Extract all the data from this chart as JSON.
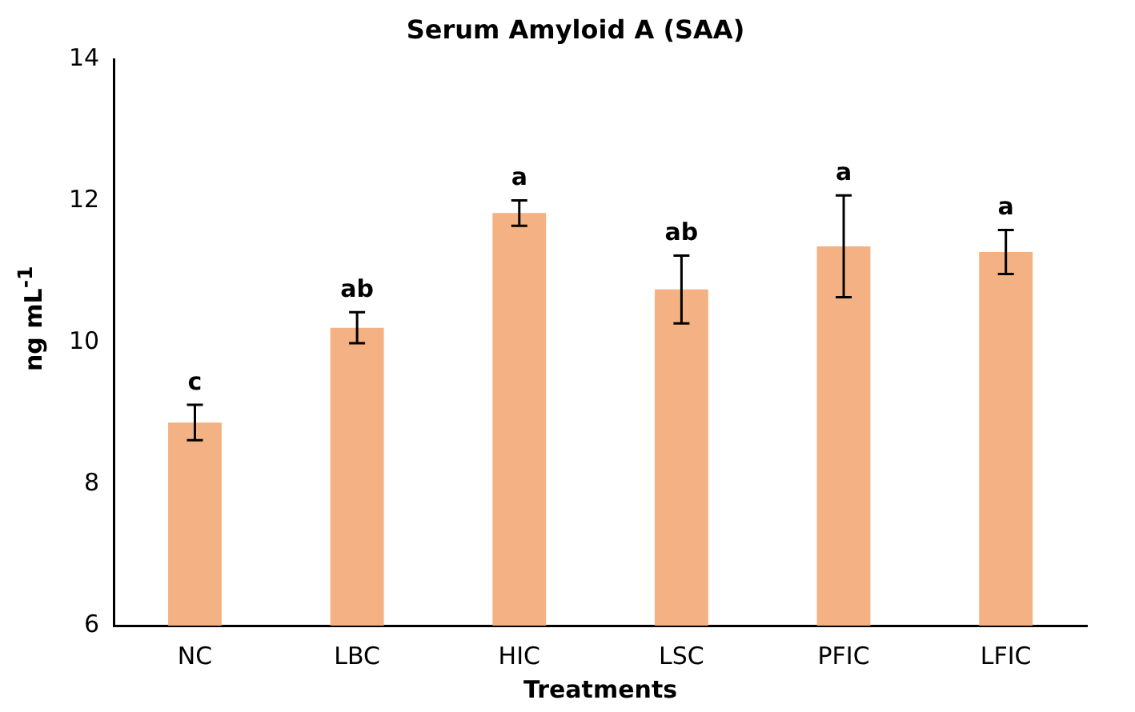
{
  "chart_data": {
    "type": "bar",
    "title": "Serum Amyloid A (SAA)",
    "xlabel": "Treatments",
    "ylabel": "ng mL$^{-1}$",
    "categories": [
      "NC",
      "LBC",
      "HIC",
      "LSC",
      "PFIC",
      "LFIC"
    ],
    "values": [
      8.87,
      10.21,
      11.83,
      10.75,
      11.36,
      11.28
    ],
    "errors": [
      0.25,
      0.22,
      0.18,
      0.48,
      0.72,
      0.31
    ],
    "color": "#f4b183",
    "ylim": [
      6,
      14
    ],
    "yticks": [
      6,
      8,
      10,
      12,
      14
    ],
    "grid": false,
    "legend": false,
    "annotations": [
      {
        "text": "c",
        "x": "NC",
        "y": 9.12
      },
      {
        "text": "ab",
        "x": "LBC",
        "y": 10.43
      },
      {
        "text": "a",
        "x": "HIC",
        "y": 12.01
      },
      {
        "text": "ab",
        "x": "LSC",
        "y": 11.23
      },
      {
        "text": "a",
        "x": "PFIC",
        "y": 12.08
      },
      {
        "text": "a",
        "x": "LFIC",
        "y": 11.59
      }
    ]
  }
}
